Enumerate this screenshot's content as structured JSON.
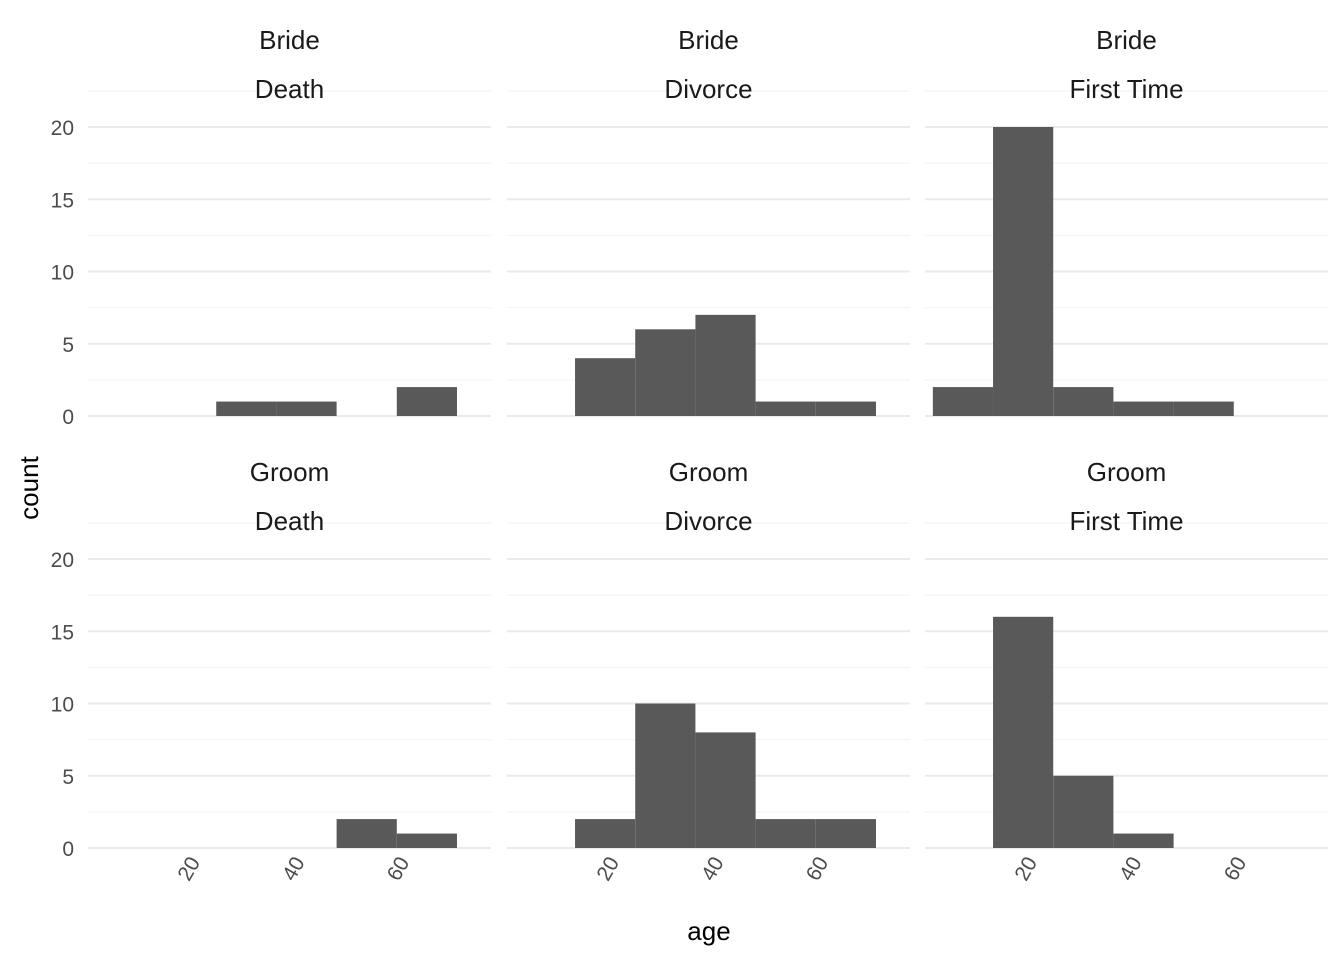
{
  "chart_data": {
    "type": "bar",
    "xlabel": "age",
    "ylabel": "count",
    "x_ticks": [
      20,
      40,
      60
    ],
    "y_ticks": [
      0,
      5,
      10,
      15,
      20
    ],
    "x_tick_rotation": "60 degrees",
    "grid": "horizontal major and minor",
    "background": "white",
    "bar_color": "#595959",
    "bin_width": 11.5,
    "bin_starts": [
      1.5,
      13,
      24.5,
      36,
      47.5,
      59,
      70.5
    ],
    "xlim": [
      0,
      77
    ],
    "ylim": [
      0,
      20
    ],
    "panels": [
      {
        "row": "Bride",
        "col": "Death",
        "counts": [
          0,
          0,
          1,
          1,
          0,
          2,
          0
        ]
      },
      {
        "row": "Bride",
        "col": "Divorce",
        "counts": [
          0,
          4,
          6,
          7,
          1,
          1,
          0
        ]
      },
      {
        "row": "Bride",
        "col": "First Time",
        "counts": [
          2,
          20,
          2,
          1,
          1,
          0,
          0
        ]
      },
      {
        "row": "Groom",
        "col": "Death",
        "counts": [
          0,
          0,
          0,
          0,
          2,
          1,
          0
        ]
      },
      {
        "row": "Groom",
        "col": "Divorce",
        "counts": [
          0,
          2,
          10,
          8,
          2,
          2,
          0
        ]
      },
      {
        "row": "Groom",
        "col": "First Time",
        "counts": [
          0,
          16,
          5,
          1,
          0,
          0,
          0
        ]
      }
    ]
  }
}
